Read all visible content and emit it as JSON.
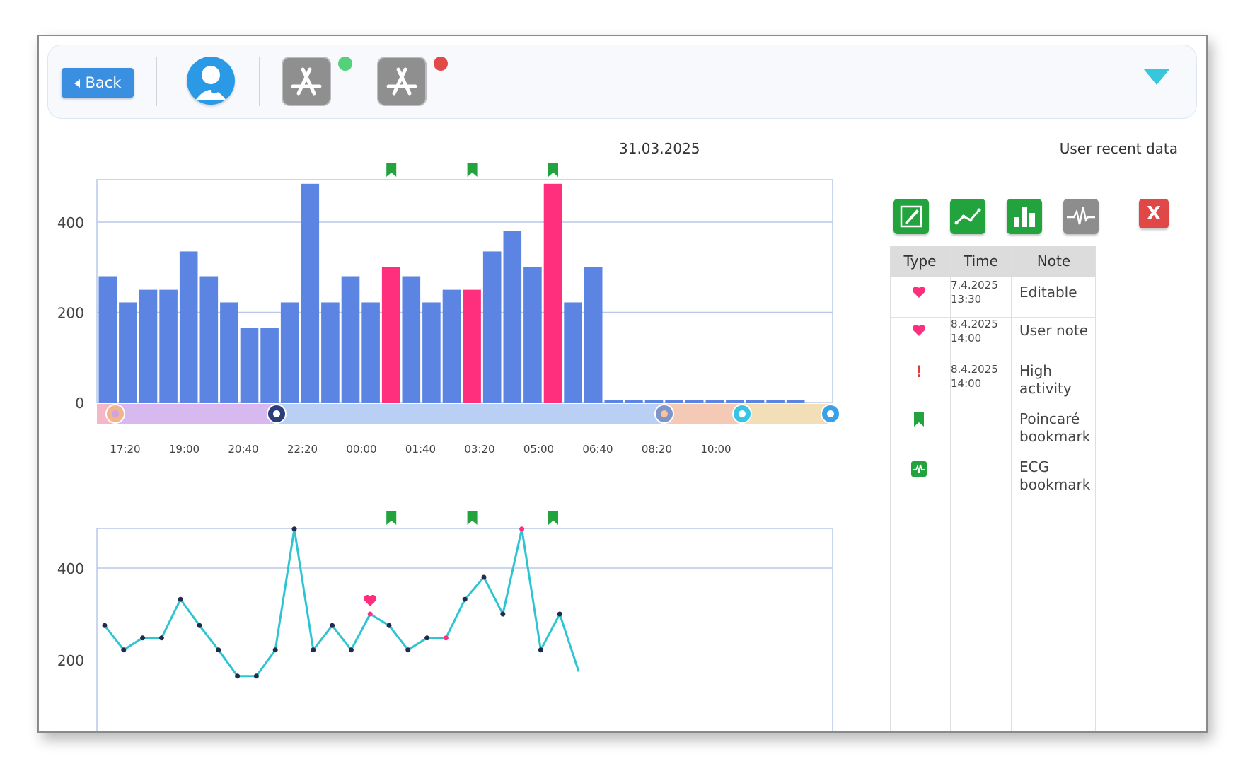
{
  "toolbar": {
    "back_label": "Back",
    "app1_status_color": "#54d27b",
    "app2_status_color": "#e24a4a",
    "menu_icon": "triangle-down-icon"
  },
  "header": {
    "date": "31.03.2025",
    "panel_title": "User recent data"
  },
  "colors": {
    "bar_default": "#5b84e3",
    "bar_highlight": "#ff2f7e",
    "line": "#2ec5d3",
    "bookmark": "#22a33e"
  },
  "chart_data": [
    {
      "type": "bar",
      "x_ticks": [
        "17:20",
        "19:00",
        "20:40",
        "22:20",
        "00:00",
        "01:40",
        "03:20",
        "05:00",
        "06:40",
        "08:20",
        "10:00"
      ],
      "y_ticks": [
        "400",
        "200",
        "0"
      ],
      "ylim": [
        0,
        480
      ],
      "values": [
        280,
        222,
        250,
        250,
        335,
        280,
        222,
        165,
        165,
        222,
        485,
        222,
        280,
        222,
        300,
        280,
        222,
        250,
        250,
        335,
        380,
        300,
        485,
        222,
        300,
        2,
        2,
        2,
        2,
        2,
        2,
        2,
        2,
        2,
        2
      ],
      "highlighted_indices": [
        14,
        18,
        22
      ],
      "bookmark_indices": [
        14,
        18,
        22
      ],
      "timeline_icons": [
        "sunset-icon",
        "moon-icon",
        "sunrise-icon",
        "sun-rising-icon",
        "sun-icon"
      ]
    },
    {
      "type": "line",
      "y_ticks": [
        "400",
        "200"
      ],
      "ylim": [
        200,
        480
      ],
      "values": [
        275,
        222,
        248,
        248,
        332,
        275,
        222,
        165,
        165,
        222,
        485,
        222,
        275,
        222,
        300,
        275,
        222,
        248,
        248,
        332,
        380,
        300,
        485,
        222,
        300,
        175
      ],
      "highlighted_indices": [
        14,
        18,
        22
      ],
      "bookmark_indices": [
        14,
        18,
        22
      ],
      "heart_marker_index": 14
    }
  ],
  "side_panel": {
    "tools": [
      {
        "icon": "edit-icon",
        "color": "#22a33e"
      },
      {
        "icon": "line-chart-icon",
        "color": "#22a33e"
      },
      {
        "icon": "bar-chart-icon",
        "color": "#22a33e"
      },
      {
        "icon": "ecg-icon",
        "color": "#8d8d8d"
      }
    ],
    "close_label": "X",
    "table": {
      "headers": [
        "Type",
        "Time",
        "Note"
      ],
      "rows": [
        {
          "type_icon": "heart-icon",
          "date": "7.4.2025",
          "time": "13:30",
          "note": "Editable"
        },
        {
          "type_icon": "heart-icon",
          "date": "8.4.2025",
          "time": "14:00",
          "note": "User note"
        },
        {
          "type_icon": "exclamation-icon",
          "date": "8.4.2025",
          "time": "14:00",
          "note_l1": "High",
          "note_l2": "activity"
        },
        {
          "type_icon": "bookmark-icon",
          "note_l1": "Poincaré",
          "note_l2": "bookmark"
        },
        {
          "type_icon": "ecg-icon",
          "note_l1": "ECG",
          "note_l2": "bookmark"
        }
      ]
    }
  }
}
